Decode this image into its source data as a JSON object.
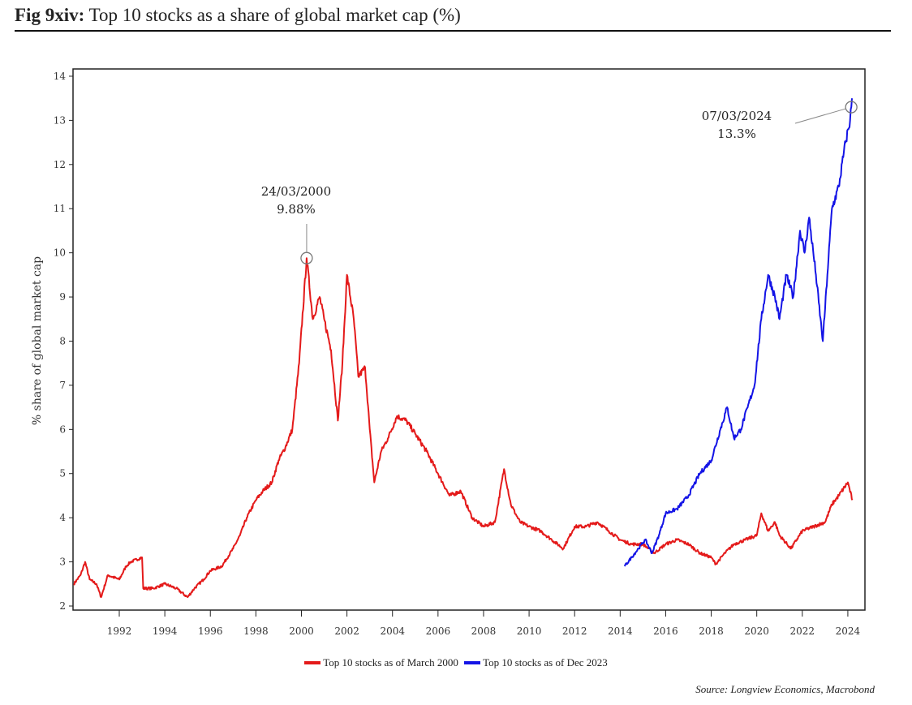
{
  "title": {
    "prefix": "Fig 9xiv:",
    "text": " Top 10 stocks as a share of global market cap (%)"
  },
  "source": "Source: Longview Economics, Macrobond",
  "chart_data": {
    "type": "line",
    "title": "Fig 9xiv: Top 10 stocks as a share of global market cap (%)",
    "ylabel": "% share of global market cap",
    "xlabel": "",
    "xlim": [
      1990.0,
      2024.6
    ],
    "ylim": [
      1.8,
      14.2
    ],
    "xticks": [
      1992,
      1994,
      1996,
      1998,
      2000,
      2002,
      2004,
      2006,
      2008,
      2010,
      2012,
      2014,
      2016,
      2018,
      2020,
      2022,
      2024
    ],
    "yticks": [
      2,
      3,
      4,
      5,
      6,
      7,
      8,
      9,
      10,
      11,
      12,
      13,
      14
    ],
    "grid": false,
    "legend_position": "bottom",
    "series": [
      {
        "name": "Top 10 stocks as of March 2000",
        "color": "#e41a1a",
        "x": [
          1990.0,
          1990.3,
          1990.5,
          1990.7,
          1991.0,
          1991.2,
          1991.5,
          1992.0,
          1992.3,
          1992.5,
          1993.0,
          1993.05,
          1993.5,
          1994.0,
          1994.5,
          1995.0,
          1995.3,
          1995.7,
          1996.0,
          1996.5,
          1997.0,
          1997.3,
          1997.6,
          1998.0,
          1998.3,
          1998.7,
          1999.0,
          1999.3,
          1999.6,
          1999.9,
          2000.23,
          2000.5,
          2000.8,
          2001.0,
          2001.3,
          2001.6,
          2001.8,
          2002.0,
          2002.3,
          2002.5,
          2002.8,
          2003.0,
          2003.2,
          2003.5,
          2003.8,
          2004.2,
          2004.6,
          2005.0,
          2005.5,
          2006.0,
          2006.5,
          2007.0,
          2007.5,
          2008.0,
          2008.5,
          2008.9,
          2009.2,
          2009.6,
          2010.0,
          2010.5,
          2011.0,
          2011.5,
          2012.0,
          2012.5,
          2013.0,
          2013.5,
          2014.0,
          2014.5,
          2015.0,
          2015.5,
          2016.0,
          2016.5,
          2017.0,
          2017.5,
          2018.0,
          2018.2,
          2018.6,
          2019.0,
          2019.5,
          2020.0,
          2020.2,
          2020.5,
          2020.8,
          2021.0,
          2021.5,
          2022.0,
          2022.5,
          2023.0,
          2023.3,
          2023.6,
          2024.0,
          2024.2
        ],
        "y": [
          2.5,
          2.7,
          3.0,
          2.6,
          2.5,
          2.2,
          2.7,
          2.6,
          2.9,
          3.0,
          3.1,
          2.4,
          2.4,
          2.5,
          2.4,
          2.2,
          2.4,
          2.6,
          2.8,
          2.9,
          3.3,
          3.6,
          4.0,
          4.4,
          4.6,
          4.8,
          5.3,
          5.6,
          6.0,
          7.5,
          9.88,
          8.5,
          9.0,
          8.5,
          7.8,
          6.2,
          7.5,
          9.5,
          8.5,
          7.2,
          7.4,
          6.0,
          4.8,
          5.5,
          5.8,
          6.3,
          6.2,
          5.9,
          5.5,
          5.0,
          4.5,
          4.6,
          4.0,
          3.8,
          3.9,
          5.1,
          4.3,
          3.9,
          3.8,
          3.7,
          3.5,
          3.3,
          3.8,
          3.8,
          3.9,
          3.7,
          3.5,
          3.4,
          3.4,
          3.2,
          3.4,
          3.5,
          3.4,
          3.2,
          3.1,
          2.95,
          3.2,
          3.4,
          3.5,
          3.6,
          4.1,
          3.7,
          3.9,
          3.6,
          3.3,
          3.7,
          3.8,
          3.9,
          4.3,
          4.5,
          4.8,
          4.4
        ]
      },
      {
        "name": "Top 10 stocks as of Dec 2023",
        "color": "#1414e6",
        "x": [
          2014.2,
          2014.5,
          2014.8,
          2015.1,
          2015.4,
          2015.7,
          2016.0,
          2016.5,
          2017.0,
          2017.5,
          2018.0,
          2018.4,
          2018.7,
          2019.0,
          2019.3,
          2019.6,
          2019.9,
          2020.2,
          2020.5,
          2020.8,
          2021.0,
          2021.3,
          2021.6,
          2021.9,
          2022.1,
          2022.3,
          2022.6,
          2022.9,
          2023.1,
          2023.3,
          2023.6,
          2023.9,
          2024.1,
          2024.18
        ],
        "y": [
          2.9,
          3.1,
          3.3,
          3.5,
          3.2,
          3.6,
          4.1,
          4.2,
          4.5,
          5.0,
          5.3,
          6.0,
          6.5,
          5.8,
          6.0,
          6.5,
          7.0,
          8.5,
          9.5,
          9.0,
          8.5,
          9.5,
          9.0,
          10.5,
          10.0,
          10.8,
          9.5,
          8.0,
          9.5,
          11.0,
          11.5,
          12.5,
          13.0,
          13.5
        ]
      }
    ],
    "annotations": [
      {
        "date": "24/03/2000",
        "label": "9.88%",
        "x": 2000.23,
        "y": 9.88
      },
      {
        "date": "07/03/2024",
        "label": "13.3%",
        "x": 2024.15,
        "y": 13.3
      }
    ]
  }
}
